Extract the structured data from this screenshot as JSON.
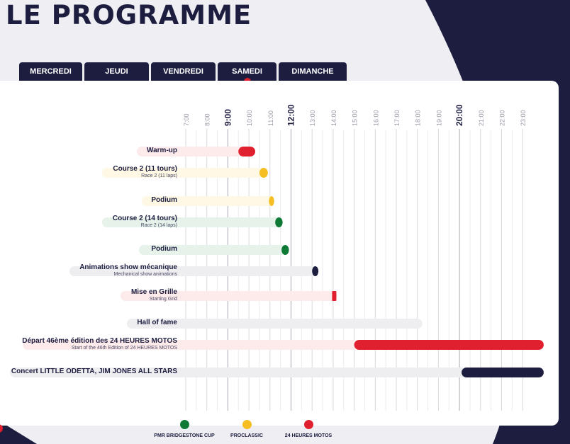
{
  "page": {
    "title": "LE PROGRAMME"
  },
  "tabs": [
    {
      "label": "MERCREDI",
      "active": false
    },
    {
      "label": "JEUDI",
      "active": false
    },
    {
      "label": "VENDREDI",
      "active": false
    },
    {
      "label": "SAMEDI",
      "active": true
    },
    {
      "label": "DIMANCHE",
      "active": false
    }
  ],
  "timeline": {
    "hours": [
      "7:00",
      "8:00",
      "9:00",
      "10:00",
      "11:00",
      "12:00",
      "13:00",
      "14:00",
      "15:00",
      "16:00",
      "17:00",
      "18:00",
      "19:00",
      "20:00",
      "21:00",
      "22:00",
      "23:00"
    ],
    "major_hours": [
      "9:00",
      "12:00",
      "20:00"
    ]
  },
  "events": [
    {
      "label": "Warm-up",
      "sub": "",
      "start": 9.5,
      "end": 10.3,
      "category": "24h",
      "track": "pink"
    },
    {
      "label": "Course 2 (11 tours)",
      "sub": "Race 2 (11 laps)",
      "start": 10.5,
      "end": 10.9,
      "category": "proclassic",
      "track": "yellow"
    },
    {
      "label": "Podium",
      "sub": "",
      "start": 10.95,
      "end": 11.2,
      "category": "proclassic",
      "track": "yellow"
    },
    {
      "label": "Course 2 (14 tours)",
      "sub": "Race 2 (14 laps)",
      "start": 11.25,
      "end": 11.6,
      "category": "pmr",
      "track": "green"
    },
    {
      "label": "Podium",
      "sub": "",
      "start": 11.55,
      "end": 11.9,
      "category": "pmr",
      "track": "green"
    },
    {
      "label": "Animations show mécanique",
      "sub": "Mechanical show animations",
      "start": 13.0,
      "end": 13.3,
      "category": "other",
      "track": "grey"
    },
    {
      "label": "Mise en Grille",
      "sub": "Starting Grid",
      "start": 13.95,
      "end": 14.05,
      "category": "24h",
      "track": "pink"
    },
    {
      "label": "Hall of fame",
      "sub": "",
      "start": null,
      "end": 18.0,
      "category": "none",
      "track": "grey"
    },
    {
      "label": "Départ 46ème édition des 24 HEURES MOTOS",
      "sub": "Start of the 46th Edition of 24 HEURES MOTOS",
      "start": 15.0,
      "end": 24.0,
      "category": "24h",
      "track": "pink"
    },
    {
      "label": "Concert LITTLE ODETTA, JIM JONES ALL STARS",
      "sub": "",
      "start": 20.1,
      "end": 24.0,
      "category": "other",
      "track": "grey"
    }
  ],
  "legend": [
    {
      "label": "PMR BRIDGESTONE CUP",
      "color": "#0e7a35"
    },
    {
      "label": "PROCLASSIC",
      "color": "#f5bf24"
    },
    {
      "label": "24 HEURES MOTOS",
      "color": "#e0202e"
    }
  ],
  "colors": {
    "navy": "#1d1d40",
    "red": "#e0202e",
    "yellow": "#f5bf24",
    "green": "#0e7a35",
    "track_pink": "#fdeaea",
    "track_yellow": "#fef8e4",
    "track_green": "#e6f2ea",
    "track_grey": "#eeeef0"
  }
}
